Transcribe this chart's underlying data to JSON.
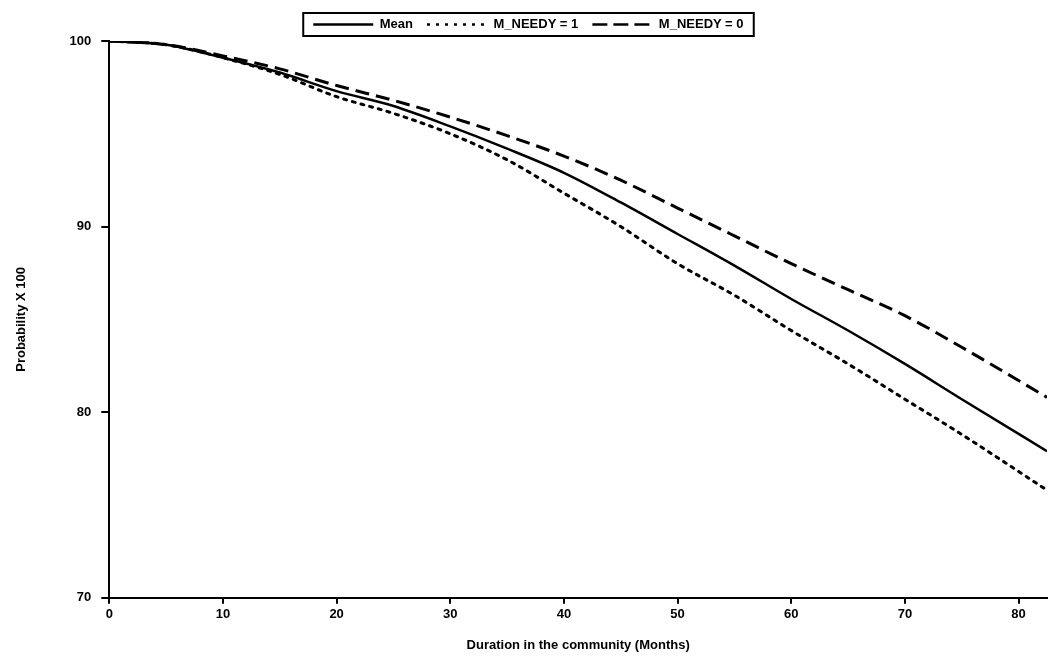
{
  "chart_data": {
    "type": "line",
    "xlabel": "Duration in the community (Months)",
    "ylabel": "Probability X 100",
    "xlim": [
      0,
      82.5
    ],
    "xticks": [
      0,
      10,
      20,
      30,
      40,
      50,
      60,
      70,
      80
    ],
    "ylim": [
      70,
      100
    ],
    "yticks": [
      70,
      80,
      90,
      100
    ],
    "grid": false,
    "legend": "top",
    "marker": "none",
    "x": [
      0,
      5,
      10,
      15,
      20,
      25,
      30,
      35,
      40,
      45,
      50,
      55,
      60,
      65,
      70,
      75,
      82.5
    ],
    "series": [
      {
        "name": "Mean",
        "color": "#000000",
        "line_style": "solid",
        "values": [
          100,
          99.8,
          99.1,
          98.3,
          97.3,
          96.5,
          95.4,
          94.2,
          92.9,
          91.3,
          89.6,
          87.9,
          86.1,
          84.4,
          82.6,
          80.7,
          77.9
        ]
      },
      {
        "name": "M_NEEDY = 1",
        "color": "#000000",
        "line_style": "dotted",
        "values": [
          100,
          99.8,
          99.1,
          98.2,
          97.0,
          96.1,
          95.0,
          93.6,
          91.8,
          90.0,
          88.0,
          86.3,
          84.4,
          82.6,
          80.7,
          78.8,
          75.8
        ]
      },
      {
        "name": "M_NEEDY = 0",
        "color": "#000000",
        "line_style": "dashed",
        "values": [
          100,
          99.8,
          99.2,
          98.5,
          97.6,
          96.8,
          95.9,
          94.9,
          93.8,
          92.5,
          91.0,
          89.5,
          88.0,
          86.6,
          85.2,
          83.5,
          80.8
        ]
      }
    ]
  }
}
